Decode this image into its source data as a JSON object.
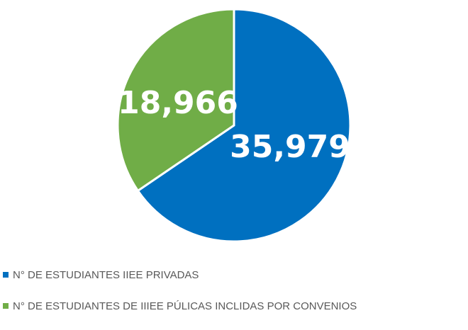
{
  "chart_data": {
    "type": "pie",
    "slices": [
      {
        "label": "N° DE ESTUDIANTES IIEE PRIVADAS",
        "value": 35979,
        "display": "35,979",
        "color": "#0070C0"
      },
      {
        "label": "N° DE ESTUDIANTES DE IIIEE PÚLICAS INCLIDAS POR CONVENIOS",
        "value": 18966,
        "display": "18,966",
        "color": "#70AD47"
      }
    ],
    "start_angle_deg": 0,
    "direction": "clockwise",
    "legend_position": "bottom-left"
  }
}
